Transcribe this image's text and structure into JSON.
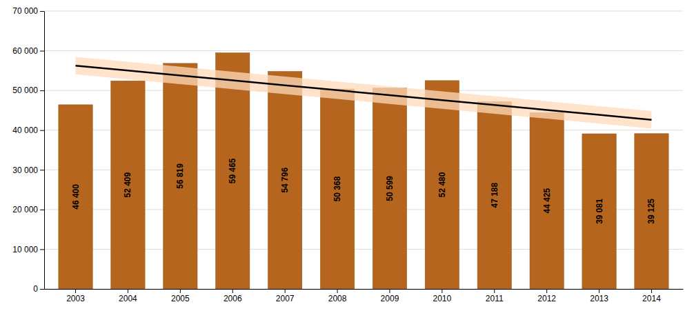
{
  "chart_data": {
    "type": "bar",
    "categories": [
      "2003",
      "2004",
      "2005",
      "2006",
      "2007",
      "2008",
      "2009",
      "2010",
      "2011",
      "2012",
      "2013",
      "2014"
    ],
    "series": [
      {
        "type": "bar",
        "color": "#B5651D",
        "values": [
          46400,
          52409,
          56819,
          59465,
          54796,
          50368,
          50599,
          52480,
          47188,
          44425,
          39081,
          39125
        ],
        "value_labels": [
          "46 400",
          "52 409",
          "56 819",
          "59 465",
          "54 796",
          "50 368",
          "50 599",
          "52 480",
          "47 188",
          "44 425",
          "39 081",
          "39 125"
        ]
      },
      {
        "type": "band",
        "color": "#FFDAB9",
        "lower": [
          54053.37,
          52812.68,
          51571.99,
          50331.31,
          49090.62,
          47849.93,
          46609.24,
          45368.55,
          44127.86,
          42887.17,
          41646.48,
          40405.79
        ],
        "upper": [
          58453.37,
          57212.68,
          55971.99,
          54731.31,
          53490.62,
          52249.93,
          51009.24,
          49768.55,
          48527.86,
          47287.17,
          46046.48,
          44805.79
        ]
      },
      {
        "type": "line",
        "color": "#000000",
        "values": [
          56253.37,
          55012.68,
          53771.99,
          52531.31,
          51290.62,
          50049.93,
          48809.24,
          47568.55,
          46327.86,
          45087.17,
          43846.48,
          42605.79
        ]
      }
    ],
    "data_labels": true,
    "ylim": [
      0,
      70000
    ],
    "yticks": [
      0,
      {
        "value": 10000,
        "label": "10 000"
      },
      {
        "value": 20000,
        "label": "20 000"
      },
      {
        "value": 30000,
        "label": "30 000"
      },
      {
        "value": 40000,
        "label": "40 000"
      },
      {
        "value": 50000,
        "label": "50 000"
      },
      {
        "value": 60000,
        "label": "60 000"
      },
      {
        "value": 70000,
        "label": "70 000"
      }
    ],
    "grid": true
  }
}
